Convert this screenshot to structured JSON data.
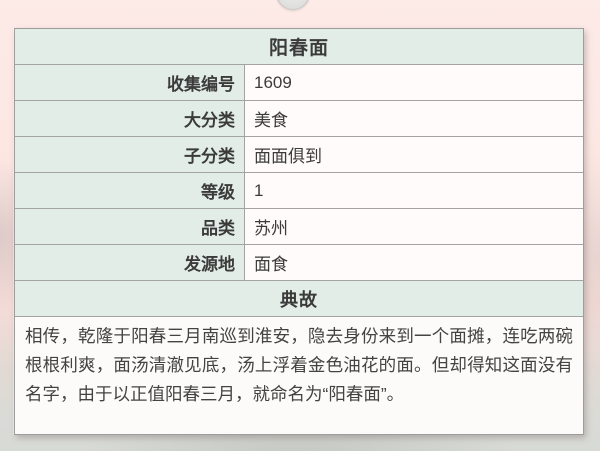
{
  "card": {
    "title": "阳春面",
    "rows": [
      {
        "label": "收集编号",
        "value": "1609"
      },
      {
        "label": "大分类",
        "value": "美食"
      },
      {
        "label": "子分类",
        "value": "面面俱到"
      },
      {
        "label": "等级",
        "value": "1"
      },
      {
        "label": "品类",
        "value": "苏州"
      },
      {
        "label": "发源地",
        "value": "面食"
      }
    ],
    "section_header": "典故",
    "story": "相传，乾隆于阳春三月南巡到淮安，隐去身份来到一个面摊，连吃两碗根根利爽，面汤清澈见底，汤上浮着金色油花的面。但却得知这面没有名字，由于以正值阳春三月，就命名为“阳春面”。"
  },
  "colors": {
    "header_bg": "#e3ede8",
    "value_bg": "#fefbfa",
    "border": "#a3a3a3",
    "page_bg_top": "#fbe5e1",
    "page_bg_bottom": "#d8dad5",
    "text": "#3b3b3b"
  }
}
